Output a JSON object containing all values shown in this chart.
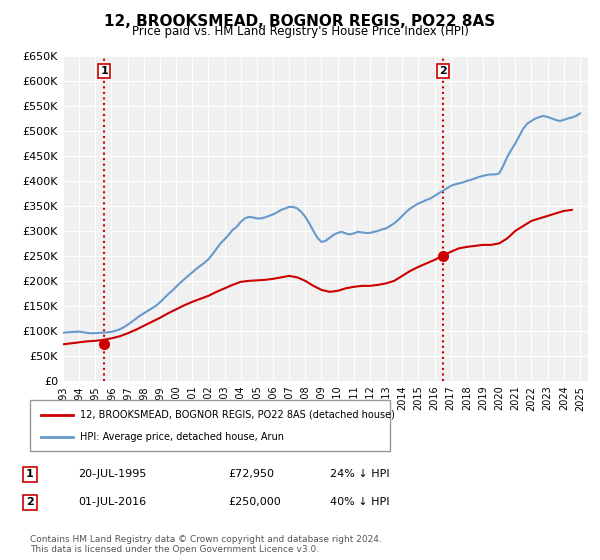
{
  "title": "12, BROOKSMEAD, BOGNOR REGIS, PO22 8AS",
  "subtitle": "Price paid vs. HM Land Registry's House Price Index (HPI)",
  "ylabel": "",
  "background_color": "#ffffff",
  "plot_bg_color": "#f0f0f0",
  "grid_color": "#ffffff",
  "ylim": [
    0,
    650000
  ],
  "yticks": [
    0,
    50000,
    100000,
    150000,
    200000,
    250000,
    300000,
    350000,
    400000,
    450000,
    500000,
    550000,
    600000,
    650000
  ],
  "ytick_labels": [
    "£0",
    "£50K",
    "£100K",
    "£150K",
    "£200K",
    "£250K",
    "£300K",
    "£350K",
    "£400K",
    "£450K",
    "£500K",
    "£550K",
    "£600K",
    "£650K"
  ],
  "xlim_start": 1993.0,
  "xlim_end": 2025.5,
  "xtick_years": [
    1993,
    1994,
    1995,
    1996,
    1997,
    1998,
    1999,
    2000,
    2001,
    2002,
    2003,
    2004,
    2005,
    2006,
    2007,
    2008,
    2009,
    2010,
    2011,
    2012,
    2013,
    2014,
    2015,
    2016,
    2017,
    2018,
    2019,
    2020,
    2021,
    2022,
    2023,
    2024,
    2025
  ],
  "transaction1_x": 1995.55,
  "transaction1_y": 72950,
  "transaction1_label": "1",
  "transaction2_x": 2016.5,
  "transaction2_y": 250000,
  "transaction2_label": "2",
  "hpi_color": "#6699cc",
  "price_color": "#cc0000",
  "vline_color": "#cc0000",
  "legend_label1": "12, BROOKSMEAD, BOGNOR REGIS, PO22 8AS (detached house)",
  "legend_label2": "HPI: Average price, detached house, Arun",
  "table_row1": [
    "1",
    "20-JUL-1995",
    "£72,950",
    "24% ↓ HPI"
  ],
  "table_row2": [
    "2",
    "01-JUL-2016",
    "£250,000",
    "40% ↓ HPI"
  ],
  "footer": "Contains HM Land Registry data © Crown copyright and database right 2024.\nThis data is licensed under the Open Government Licence v3.0.",
  "hpi_x": [
    1993.0,
    1993.25,
    1993.5,
    1993.75,
    1994.0,
    1994.25,
    1994.5,
    1994.75,
    1995.0,
    1995.25,
    1995.5,
    1995.75,
    1996.0,
    1996.25,
    1996.5,
    1996.75,
    1997.0,
    1997.25,
    1997.5,
    1997.75,
    1998.0,
    1998.25,
    1998.5,
    1998.75,
    1999.0,
    1999.25,
    1999.5,
    1999.75,
    2000.0,
    2000.25,
    2000.5,
    2000.75,
    2001.0,
    2001.25,
    2001.5,
    2001.75,
    2002.0,
    2002.25,
    2002.5,
    2002.75,
    2003.0,
    2003.25,
    2003.5,
    2003.75,
    2004.0,
    2004.25,
    2004.5,
    2004.75,
    2005.0,
    2005.25,
    2005.5,
    2005.75,
    2006.0,
    2006.25,
    2006.5,
    2006.75,
    2007.0,
    2007.25,
    2007.5,
    2007.75,
    2008.0,
    2008.25,
    2008.5,
    2008.75,
    2009.0,
    2009.25,
    2009.5,
    2009.75,
    2010.0,
    2010.25,
    2010.5,
    2010.75,
    2011.0,
    2011.25,
    2011.5,
    2011.75,
    2012.0,
    2012.25,
    2012.5,
    2012.75,
    2013.0,
    2013.25,
    2013.5,
    2013.75,
    2014.0,
    2014.25,
    2014.5,
    2014.75,
    2015.0,
    2015.25,
    2015.5,
    2015.75,
    2016.0,
    2016.25,
    2016.5,
    2016.75,
    2017.0,
    2017.25,
    2017.5,
    2017.75,
    2018.0,
    2018.25,
    2018.5,
    2018.75,
    2019.0,
    2019.25,
    2019.5,
    2019.75,
    2020.0,
    2020.25,
    2020.5,
    2020.75,
    2021.0,
    2021.25,
    2021.5,
    2021.75,
    2022.0,
    2022.25,
    2022.5,
    2022.75,
    2023.0,
    2023.25,
    2023.5,
    2023.75,
    2024.0,
    2024.25,
    2024.5,
    2024.75,
    2025.0
  ],
  "hpi_y": [
    96000,
    97000,
    97500,
    98000,
    98500,
    97000,
    96000,
    95000,
    95500,
    96000,
    96500,
    97000,
    98000,
    100000,
    103000,
    107000,
    112000,
    118000,
    124000,
    130000,
    135000,
    140000,
    145000,
    150000,
    157000,
    165000,
    173000,
    180000,
    188000,
    196000,
    203000,
    210000,
    217000,
    224000,
    230000,
    236000,
    243000,
    253000,
    264000,
    275000,
    283000,
    292000,
    302000,
    308000,
    318000,
    325000,
    328000,
    327000,
    325000,
    325000,
    327000,
    330000,
    333000,
    337000,
    342000,
    345000,
    348000,
    348000,
    345000,
    338000,
    328000,
    315000,
    300000,
    286000,
    278000,
    280000,
    286000,
    292000,
    296000,
    298000,
    295000,
    293000,
    295000,
    298000,
    297000,
    296000,
    296000,
    298000,
    300000,
    303000,
    305000,
    310000,
    315000,
    322000,
    330000,
    338000,
    345000,
    350000,
    355000,
    358000,
    362000,
    365000,
    370000,
    375000,
    380000,
    385000,
    390000,
    393000,
    395000,
    397000,
    400000,
    402000,
    405000,
    408000,
    410000,
    412000,
    413000,
    413000,
    415000,
    430000,
    448000,
    462000,
    475000,
    490000,
    505000,
    515000,
    520000,
    525000,
    528000,
    530000,
    528000,
    525000,
    522000,
    520000,
    522000,
    525000,
    527000,
    530000,
    535000
  ],
  "price_x": [
    1993.0,
    1993.5,
    1994.0,
    1994.5,
    1995.0,
    1995.5,
    1996.0,
    1996.5,
    1997.0,
    1997.5,
    1998.0,
    1998.5,
    1999.0,
    1999.5,
    2000.0,
    2000.5,
    2001.0,
    2001.5,
    2002.0,
    2002.5,
    2003.0,
    2003.5,
    2004.0,
    2004.5,
    2005.0,
    2005.5,
    2006.0,
    2006.5,
    2007.0,
    2007.5,
    2008.0,
    2008.5,
    2009.0,
    2009.5,
    2010.0,
    2010.5,
    2011.0,
    2011.5,
    2012.0,
    2012.5,
    2013.0,
    2013.5,
    2014.0,
    2014.5,
    2015.0,
    2015.5,
    2016.0,
    2016.5,
    2017.0,
    2017.5,
    2018.0,
    2018.5,
    2019.0,
    2019.5,
    2020.0,
    2020.5,
    2021.0,
    2021.5,
    2022.0,
    2022.5,
    2023.0,
    2023.5,
    2024.0,
    2024.5
  ],
  "price_y": [
    73000,
    75000,
    77000,
    79000,
    80000,
    82000,
    85000,
    89000,
    95000,
    102000,
    110000,
    118000,
    126000,
    135000,
    143000,
    151000,
    158000,
    164000,
    170000,
    178000,
    185000,
    192000,
    198000,
    200000,
    201000,
    202000,
    204000,
    207000,
    210000,
    207000,
    200000,
    190000,
    182000,
    178000,
    180000,
    185000,
    188000,
    190000,
    190000,
    192000,
    195000,
    200000,
    210000,
    220000,
    228000,
    235000,
    242000,
    250000,
    258000,
    265000,
    268000,
    270000,
    272000,
    272000,
    275000,
    285000,
    300000,
    310000,
    320000,
    325000,
    330000,
    335000,
    340000,
    342000
  ]
}
